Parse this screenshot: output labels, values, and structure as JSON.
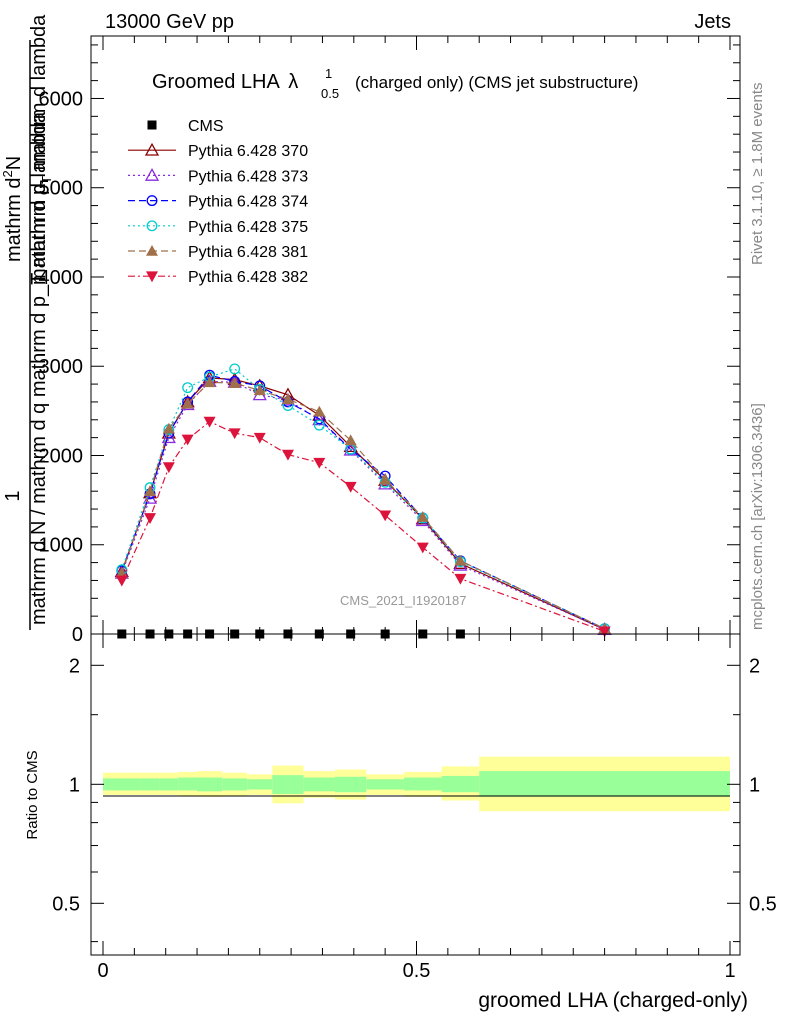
{
  "header": {
    "left": "13000 GeV pp",
    "right": "Jets"
  },
  "side_labels": {
    "rivet": "Rivet 3.1.10, ≥ 1.8M events",
    "mcplots": "mcplots.cern.ch [arXiv:1306.3436]"
  },
  "watermark": "CMS_2021_I1920187",
  "chart_data": [
    {
      "type": "line",
      "title": "Groomed LHA",
      "title_symbol": "λ",
      "title_sup": "1",
      "title_sub": "0.5",
      "title_suffix": "(charged only) (CMS jet substructure)",
      "ylabel_numerator": "1",
      "ylabel_denominator": "mathrm d N / mathrm d q mathrm d p_T mathrm d lambda",
      "ylabel_top": "mathrm d²N",
      "ylabel_top_raw": "mathrm d^{2}N",
      "ylabel_bottom": "mathrm d p_T mathrm d lambda",
      "ylabel_lines": {
        "a": "mathrm d",
        "b": "2",
        "c": "N",
        "d": "mathrm d p",
        "e": "T",
        "f": " mathrm d lambda",
        "g": "mathrm d N / mathrm d q mathrm d p",
        "h": "mathrm d q mathrm d p"
      },
      "xlim": [
        0,
        1
      ],
      "ylim": [
        0,
        6700
      ],
      "yticks": [
        0,
        1000,
        2000,
        3000,
        4000,
        5000,
        6000
      ],
      "ytick_labels": [
        "0",
        "1000",
        "2000",
        "3000",
        "4000",
        "5000",
        "6000"
      ],
      "legend_position": "top-left",
      "x": [
        0.03,
        0.075,
        0.105,
        0.135,
        0.17,
        0.21,
        0.25,
        0.295,
        0.345,
        0.395,
        0.45,
        0.51,
        0.57,
        0.8
      ],
      "series": [
        {
          "name": "CMS",
          "color": "#000000",
          "marker": "square",
          "dash": "",
          "values": [
            0,
            0,
            0,
            0,
            0,
            0,
            0,
            0,
            0,
            0,
            0,
            0,
            0,
            null
          ]
        },
        {
          "name": "Pythia 6.428 370",
          "color": "#8b0000",
          "marker": "triangle-open",
          "dash": "",
          "values": [
            700,
            1580,
            2250,
            2600,
            2870,
            2850,
            2780,
            2680,
            2450,
            2100,
            1720,
            1290,
            790,
            50
          ]
        },
        {
          "name": "Pythia 6.428 373",
          "color": "#8a2be2",
          "marker": "triangle-open",
          "dash": "2,3",
          "values": [
            680,
            1520,
            2200,
            2570,
            2830,
            2820,
            2680,
            2620,
            2400,
            2060,
            1680,
            1270,
            770,
            50
          ]
        },
        {
          "name": "Pythia 6.428 374",
          "color": "#0000ff",
          "marker": "circle-open",
          "dash": "7,4",
          "values": [
            710,
            1570,
            2250,
            2600,
            2900,
            2830,
            2780,
            2600,
            2410,
            2070,
            1770,
            1300,
            820,
            60
          ]
        },
        {
          "name": "Pythia 6.428 375",
          "color": "#00cccc",
          "marker": "circle-open",
          "dash": "2,3",
          "values": [
            720,
            1640,
            2290,
            2760,
            2880,
            2970,
            2740,
            2560,
            2340,
            2070,
            1700,
            1300,
            810,
            60
          ]
        },
        {
          "name": "Pythia 6.428 381",
          "color": "#a0704a",
          "marker": "triangle-filled",
          "dash": "7,4",
          "values": [
            680,
            1600,
            2300,
            2580,
            2820,
            2810,
            2730,
            2630,
            2490,
            2170,
            1730,
            1310,
            820,
            60
          ]
        },
        {
          "name": "Pythia 6.428 382",
          "color": "#dc143c",
          "marker": "triangle-down-filled",
          "dash": "7,3,2,3",
          "values": [
            600,
            1300,
            1870,
            2180,
            2380,
            2250,
            2200,
            2010,
            1920,
            1650,
            1330,
            970,
            620,
            30
          ]
        }
      ]
    },
    {
      "type": "area",
      "ylabel": "Ratio to CMS",
      "xlabel": "groomed LHA (charged-only)",
      "xlim": [
        0,
        1
      ],
      "ylim": [
        0.37,
        2.4
      ],
      "log_y": true,
      "yticks": [
        0.5,
        1,
        2
      ],
      "ytick_labels": [
        "0.5",
        "1",
        "2"
      ],
      "xticks": [
        0,
        0.5,
        1
      ],
      "xtick_labels": [
        "0",
        "0.5",
        "1"
      ],
      "inner_band_color": "#99ff99",
      "outer_band_color": "#ffff99",
      "bins": [
        {
          "lo": 0.0,
          "hi": 0.06,
          "inner": [
            0.965,
            1.035
          ],
          "outer": [
            0.94,
            1.07
          ]
        },
        {
          "lo": 0.06,
          "hi": 0.09,
          "inner": [
            0.965,
            1.035
          ],
          "outer": [
            0.94,
            1.07
          ]
        },
        {
          "lo": 0.09,
          "hi": 0.12,
          "inner": [
            0.965,
            1.035
          ],
          "outer": [
            0.94,
            1.07
          ]
        },
        {
          "lo": 0.12,
          "hi": 0.15,
          "inner": [
            0.965,
            1.04
          ],
          "outer": [
            0.935,
            1.075
          ]
        },
        {
          "lo": 0.15,
          "hi": 0.19,
          "inner": [
            0.96,
            1.04
          ],
          "outer": [
            0.93,
            1.08
          ]
        },
        {
          "lo": 0.19,
          "hi": 0.23,
          "inner": [
            0.965,
            1.035
          ],
          "outer": [
            0.935,
            1.07
          ]
        },
        {
          "lo": 0.23,
          "hi": 0.27,
          "inner": [
            0.97,
            1.03
          ],
          "outer": [
            0.94,
            1.06
          ]
        },
        {
          "lo": 0.27,
          "hi": 0.32,
          "inner": [
            0.945,
            1.055
          ],
          "outer": [
            0.895,
            1.115
          ]
        },
        {
          "lo": 0.32,
          "hi": 0.37,
          "inner": [
            0.96,
            1.04
          ],
          "outer": [
            0.925,
            1.08
          ]
        },
        {
          "lo": 0.37,
          "hi": 0.42,
          "inner": [
            0.955,
            1.045
          ],
          "outer": [
            0.915,
            1.09
          ]
        },
        {
          "lo": 0.42,
          "hi": 0.48,
          "inner": [
            0.97,
            1.03
          ],
          "outer": [
            0.94,
            1.06
          ]
        },
        {
          "lo": 0.48,
          "hi": 0.54,
          "inner": [
            0.965,
            1.04
          ],
          "outer": [
            0.93,
            1.075
          ]
        },
        {
          "lo": 0.54,
          "hi": 0.6,
          "inner": [
            0.955,
            1.05
          ],
          "outer": [
            0.91,
            1.11
          ]
        },
        {
          "lo": 0.6,
          "hi": 1.0,
          "inner": [
            0.93,
            1.08
          ],
          "outer": [
            0.855,
            1.175
          ]
        }
      ]
    }
  ]
}
